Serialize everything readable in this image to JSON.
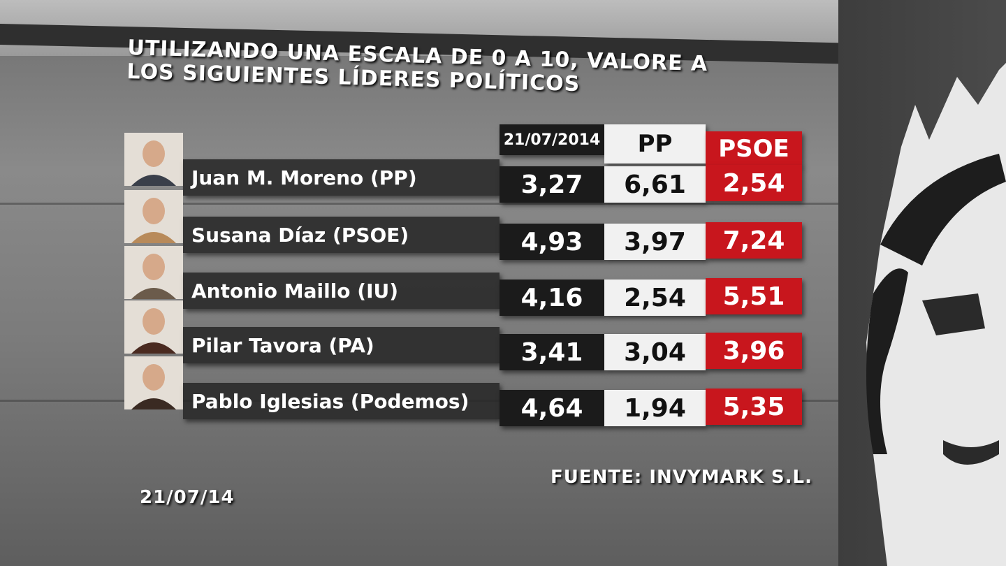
{
  "title": "UTILIZANDO UNA ESCALA DE 0 A 10, VALORE A LOS SIGUIENTES LÍDERES POLÍTICOS",
  "table": {
    "columns": [
      "21/07/2014",
      "PP",
      "PSOE"
    ],
    "rows": [
      {
        "name": "Juan M. Moreno (PP)",
        "values": [
          "3,27",
          "6,61",
          "2,54"
        ]
      },
      {
        "name": "Susana Díaz (PSOE)",
        "values": [
          "4,93",
          "3,97",
          "7,24"
        ]
      },
      {
        "name": "Antonio Maillo (IU)",
        "values": [
          "4,16",
          "2,54",
          "5,51"
        ]
      },
      {
        "name": "Pilar Tavora (PA)",
        "values": [
          "3,41",
          "3,04",
          "3,96"
        ]
      },
      {
        "name": "Pablo Iglesias (Podemos)",
        "values": [
          "4,64",
          "1,94",
          "5,35"
        ]
      }
    ]
  },
  "source": "FUENTE: INVYMARK S.L.",
  "date": "21/07/14"
}
